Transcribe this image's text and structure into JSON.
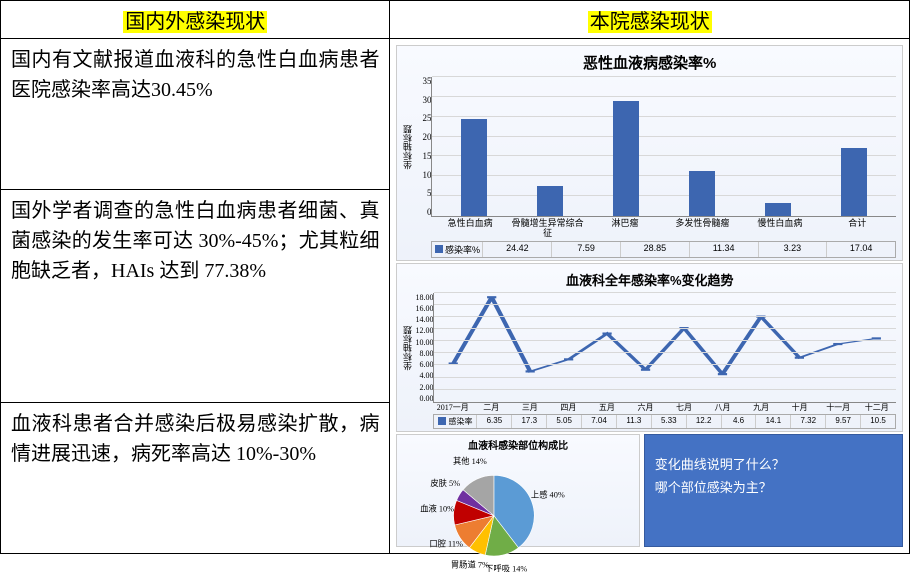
{
  "headers": {
    "left": "国内外感染现状",
    "right": "本院感染现状"
  },
  "paragraphs": {
    "p1": "国内有文献报道血液科的急性白血病患者医院感染率高达30.45%",
    "p2": "国外学者调查的急性白血病患者细菌、真菌感染的发生率可达 30%-45%；尤其粒细胞缺乏者，HAIs 达到 77.38%",
    "p3": "血液科患者合并感染后极易感染扩散，病情进展迅速，病死率高达 10%-30%"
  },
  "bar_chart": {
    "title": "恶性血液病感染率%",
    "y_label": "坐标轴标题",
    "y_max": 35,
    "y_step": 5,
    "categories": [
      "急性白血病",
      "骨髓增生异常综合征",
      "淋巴瘤",
      "多发性骨髓瘤",
      "慢性白血病",
      "合计"
    ],
    "values": [
      24.42,
      7.59,
      28.85,
      11.34,
      3.23,
      17.04
    ],
    "series_label": "感染率%",
    "bar_color": "#3d66b0",
    "grid_color": "#d8d8d8"
  },
  "line_chart": {
    "title": "血液科全年感染率%变化趋势",
    "y_label": "坐标轴标题",
    "y_max": 18,
    "y_step": 2,
    "months": [
      "2017一月",
      "二月",
      "三月",
      "四月",
      "五月",
      "六月",
      "七月",
      "八月",
      "九月",
      "十月",
      "十一月",
      "十二月"
    ],
    "values": [
      6.35,
      17.3,
      5.05,
      7.04,
      11.3,
      5.33,
      12.2,
      4.6,
      14.1,
      7.32,
      9.57,
      10.5
    ],
    "series_label": "感染率",
    "line_color": "#3d66b0"
  },
  "pie_chart": {
    "title": "血液科感染部位构成比",
    "slices": [
      {
        "label": "上感",
        "value": 40,
        "color": "#5b9bd5"
      },
      {
        "label": "下呼吸",
        "value": 14,
        "color": "#70ad47"
      },
      {
        "label": "胃肠道",
        "value": 7,
        "color": "#ffc000"
      },
      {
        "label": "口腔",
        "value": 11,
        "color": "#ed7d31"
      },
      {
        "label": "血液",
        "value": 10,
        "color": "#c00000"
      },
      {
        "label": "皮肤",
        "value": 5,
        "color": "#7030a0"
      },
      {
        "label": "其他",
        "value": 14,
        "color": "#a5a5a5"
      }
    ]
  },
  "questions": {
    "q1": "变化曲线说明了什么？",
    "q2": "哪个部位感染为主？"
  }
}
